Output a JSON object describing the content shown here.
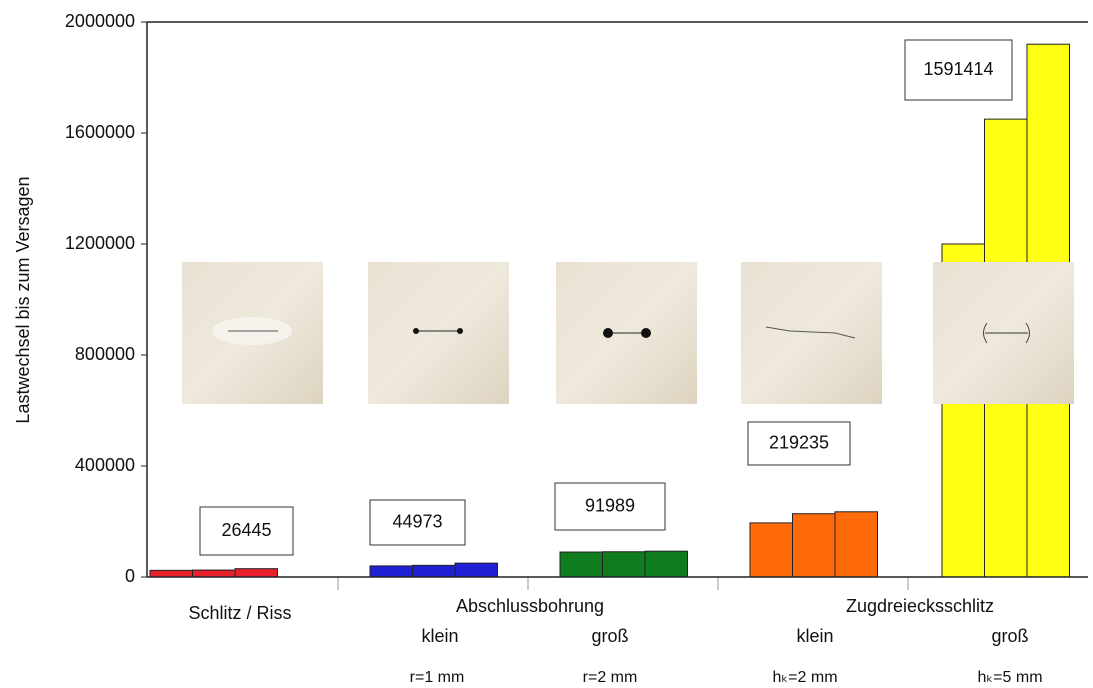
{
  "chart_data": {
    "type": "bar",
    "y_label": "Lastwechsel bis zum Versagen",
    "ylim": [
      0,
      2000000
    ],
    "yticks": [
      0,
      400000,
      800000,
      1200000,
      1600000,
      2000000
    ],
    "groups": [
      {
        "color": "#e8202a",
        "values": [
          24000,
          25000,
          30000
        ],
        "mean": 26445
      },
      {
        "color": "#1f1fd6",
        "values": [
          40000,
          42000,
          50000
        ],
        "mean": 44973
      },
      {
        "color": "#0f7d1e",
        "values": [
          90000,
          91000,
          93000
        ],
        "mean": 91989
      },
      {
        "color": "#ff6a0a",
        "values": [
          195000,
          228000,
          235000
        ],
        "mean": 219235
      },
      {
        "color": "#ffff14",
        "values": [
          1200000,
          1650000,
          1920000
        ],
        "mean": 1591414
      }
    ],
    "x_labels": [
      "Schlitz / Riss",
      "Abschlussbohrung",
      "klein",
      "groß",
      "r=1 mm",
      "r=2 mm",
      "Zugdreiecksschlitz",
      "klein",
      "groß",
      "hₖ=2 mm",
      "hₖ=5 mm"
    ]
  }
}
